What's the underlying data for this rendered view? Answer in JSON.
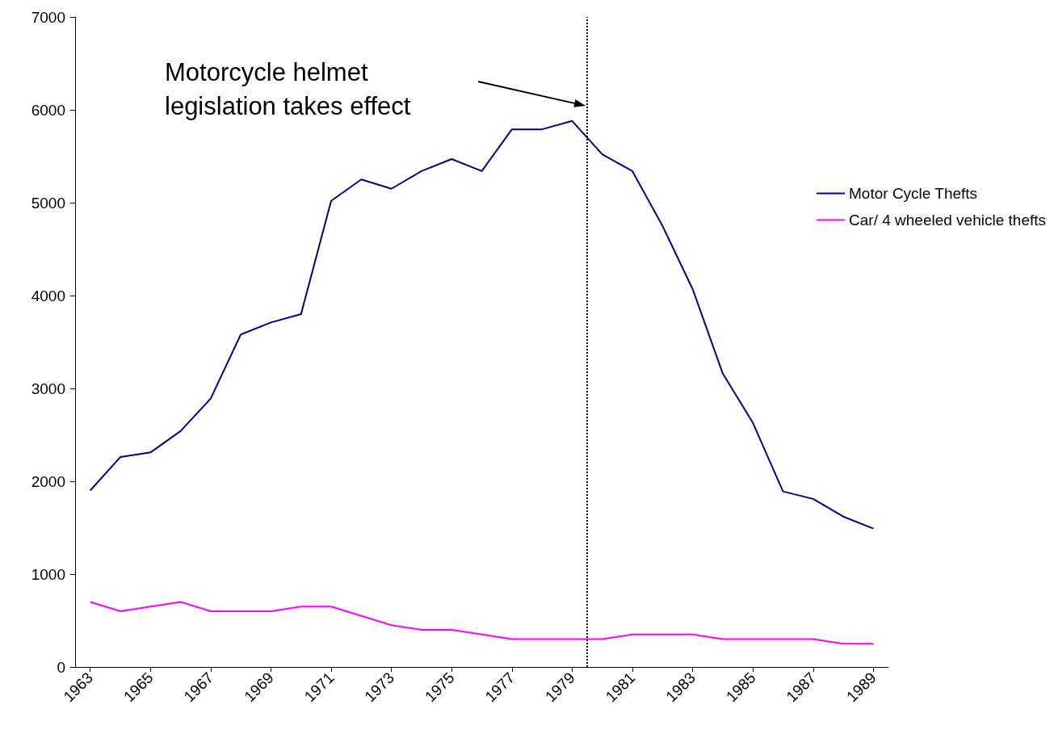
{
  "chart_data": {
    "type": "line",
    "x": [
      1963,
      1964,
      1965,
      1966,
      1967,
      1968,
      1969,
      1970,
      1971,
      1972,
      1973,
      1974,
      1975,
      1976,
      1977,
      1978,
      1979,
      1980,
      1981,
      1982,
      1983,
      1984,
      1985,
      1986,
      1987,
      1988,
      1989
    ],
    "series": [
      {
        "name": "Motor Cycle Thefts",
        "color": "#000080",
        "values": [
          1900,
          2260,
          2310,
          2540,
          2890,
          3580,
          3710,
          3800,
          5020,
          5250,
          5150,
          5340,
          5470,
          5340,
          5790,
          5790,
          5880,
          5520,
          5340,
          4750,
          4070,
          3160,
          2630,
          1890,
          1810,
          1620,
          1490
        ]
      },
      {
        "name": "Car/ 4 wheeled vehicle thefts",
        "color": "#ff00ff",
        "values": [
          700,
          600,
          650,
          700,
          600,
          600,
          600,
          650,
          650,
          550,
          450,
          400,
          400,
          350,
          300,
          300,
          300,
          300,
          350,
          350,
          350,
          300,
          300,
          300,
          300,
          250,
          250
        ]
      }
    ],
    "xlim": [
      1962.5,
      1989.5
    ],
    "xticks": [
      1963,
      1965,
      1967,
      1969,
      1971,
      1973,
      1975,
      1977,
      1979,
      1981,
      1983,
      1985,
      1987,
      1989
    ],
    "ylim": [
      0,
      7000
    ],
    "yticks": [
      0,
      1000,
      2000,
      3000,
      4000,
      5000,
      6000,
      7000
    ],
    "ref_lines": [
      {
        "axis": "x",
        "value": 1979.5,
        "color": "#000000",
        "line_style": "dotted"
      }
    ],
    "annotations": [
      "Motorcycle helmet legislation takes effect"
    ],
    "legend": "right",
    "grid": false,
    "marker": "none",
    "line_style": "solid"
  }
}
